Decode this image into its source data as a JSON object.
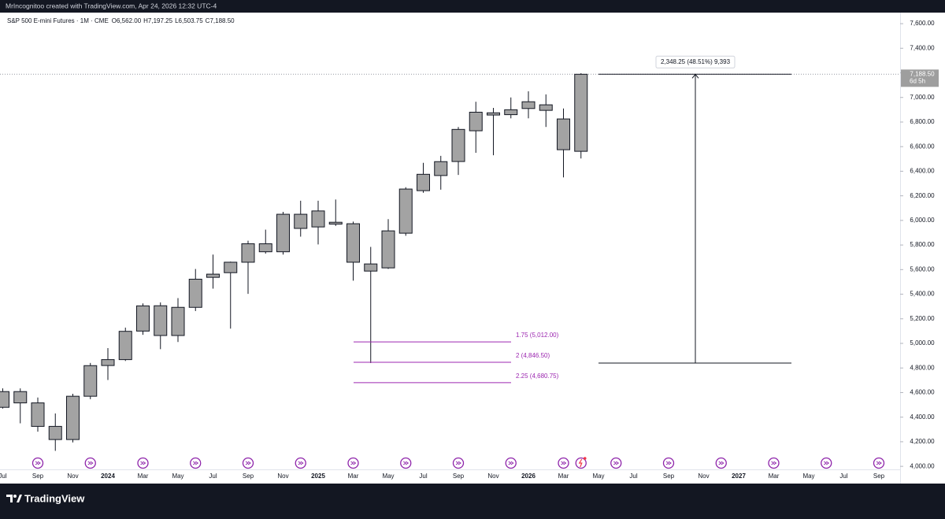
{
  "header": {
    "credit": "MrIncognitoo created with TradingView.com, Apr 24, 2026 12:32 UTC-4"
  },
  "footer": {
    "brand": "TradingView"
  },
  "chart_data": {
    "type": "candlestick",
    "title": "S&P 500 E-mini Futures · 1M · CME",
    "ohlc_legend": [
      "O6,562.00",
      "H7,197.25",
      "L6,503.75",
      "C7,188.50"
    ],
    "categories": [
      "Jul",
      null,
      "Sep",
      null,
      "Nov",
      null,
      "2024",
      null,
      "Mar",
      null,
      "May",
      null,
      "Jul",
      null,
      "Sep",
      null,
      "Nov",
      null,
      "2025",
      null,
      "Mar",
      null,
      "May",
      null,
      "Jul",
      null,
      "Sep",
      null,
      "Nov",
      null,
      "2026",
      null,
      "Mar",
      null,
      "May",
      null,
      "Jul",
      null,
      "Sep",
      null,
      "Nov",
      null,
      "2027",
      null,
      "Mar",
      null,
      "May",
      null,
      "Jul",
      null,
      "Sep"
    ],
    "open": [
      4480,
      4608,
      4516,
      4325,
      4218,
      4570,
      4820,
      4868,
      5100,
      5306,
      5064,
      5293,
      5537,
      5575,
      5660,
      5810,
      5745,
      6050,
      5947,
      5970,
      5973,
      5646,
      5614,
      5896,
      6242,
      6365,
      6479,
      6729,
      6857,
      6860,
      6910,
      6940,
      6825,
      6562,
      null,
      null,
      null,
      null,
      null,
      null,
      null,
      null,
      null,
      null,
      null,
      null,
      null,
      null,
      null,
      null,
      null
    ],
    "high": [
      4634,
      4634,
      4560,
      4430,
      4590,
      4841,
      4962,
      5128,
      5325,
      5333,
      5368,
      5605,
      5722,
      5665,
      5835,
      5925,
      6070,
      6160,
      6160,
      6170,
      5990,
      5785,
      6010,
      6270,
      6468,
      6525,
      6760,
      6965,
      6915,
      7000,
      7050,
      7025,
      6910,
      7197.25,
      null,
      null,
      null,
      null,
      null,
      null,
      null,
      null,
      null,
      null,
      null,
      null,
      null,
      null,
      null,
      null,
      null
    ],
    "low": [
      4470,
      4350,
      4282,
      4126,
      4195,
      4546,
      4702,
      4857,
      5070,
      4953,
      5011,
      5263,
      5445,
      5120,
      5403,
      5730,
      5722,
      5868,
      5805,
      5955,
      5510,
      4840.25,
      5605,
      5875,
      6225,
      6250,
      6370,
      6550,
      6530,
      6830,
      6830,
      6760,
      6350,
      6503.75,
      null,
      null,
      null,
      null,
      null,
      null,
      null,
      null,
      null,
      null,
      null,
      null,
      null,
      null,
      null,
      null,
      null
    ],
    "close": [
      4608,
      4516,
      4325,
      4218,
      4570,
      4819,
      4868,
      5098,
      5305,
      5064,
      5293,
      5522,
      5563,
      5660,
      5810,
      5745,
      6050,
      5935,
      6077,
      5985,
      5660,
      5588,
      5915,
      6255,
      6375,
      6478,
      6740,
      6880,
      6875,
      6900,
      6965,
      6895,
      6575,
      7188.5,
      null,
      null,
      null,
      null,
      null,
      null,
      null,
      null,
      null,
      null,
      null,
      null,
      null,
      null,
      null,
      null,
      null
    ],
    "color": "#a3a3a3",
    "ylim": [
      3860,
      7690
    ],
    "yticks": [
      {
        "value": 7600,
        "label": "7,600.00"
      },
      {
        "value": 7400,
        "label": "7,400.00"
      },
      {
        "value": 7200,
        "label": "7,200.00"
      },
      {
        "value": 7000,
        "label": "7,000.00"
      },
      {
        "value": 6800,
        "label": "6,800.00"
      },
      {
        "value": 6600,
        "label": "6,600.00"
      },
      {
        "value": 6400,
        "label": "6,400.00"
      },
      {
        "value": 6200,
        "label": "6,200.00"
      },
      {
        "value": 6000,
        "label": "6,000.00"
      },
      {
        "value": 5800,
        "label": "5,800.00"
      },
      {
        "value": 5600,
        "label": "5,600.00"
      },
      {
        "value": 5400,
        "label": "5,400.00"
      },
      {
        "value": 5200,
        "label": "5,200.00"
      },
      {
        "value": 5000,
        "label": "5,000.00"
      },
      {
        "value": 4800,
        "label": "4,800.00"
      },
      {
        "value": 4600,
        "label": "4,600.00"
      },
      {
        "value": 4400,
        "label": "4,400.00"
      },
      {
        "value": 4200,
        "label": "4,200.00"
      },
      {
        "value": 4000,
        "label": "4,000.00"
      }
    ],
    "last_price": {
      "value": 7188.5,
      "label": "7,188.50",
      "countdown": "6d 5h"
    },
    "fib_levels": [
      {
        "value": 5012,
        "label": "1.75 (5,012.00)"
      },
      {
        "value": 4846.5,
        "label": "2 (4,846.50)"
      },
      {
        "value": 4680.75,
        "label": "2.25 (4,680.75)"
      }
    ],
    "fib_color": "#9c27b0",
    "measure": {
      "from": 4840.25,
      "to": 7188.5,
      "label": "2,348.25 (48.51%) 9,393"
    }
  }
}
